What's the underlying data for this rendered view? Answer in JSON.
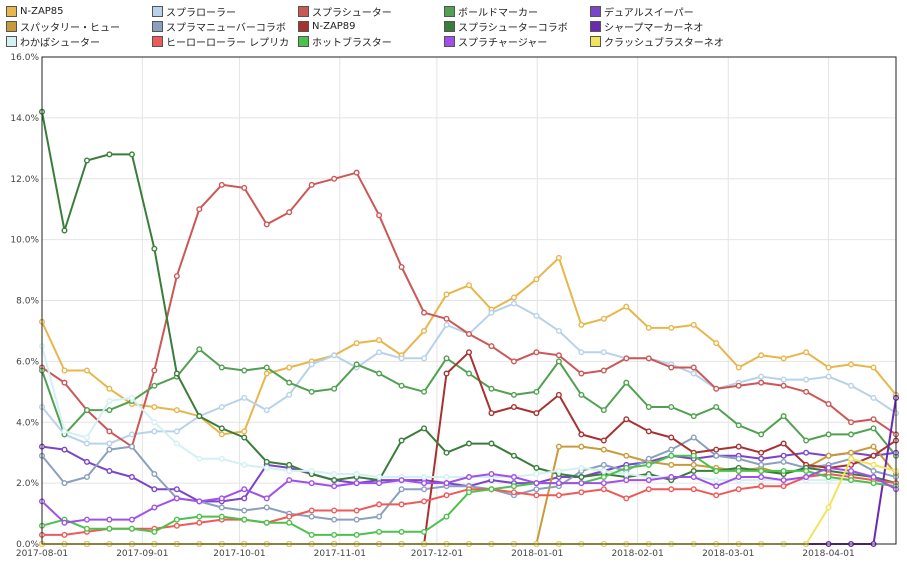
{
  "chart_data": {
    "type": "line",
    "title": "",
    "xlabel": "",
    "ylabel": "",
    "ylim": [
      0,
      16
    ],
    "y_ticks": [
      "0.0%",
      "2.0%",
      "4.0%",
      "6.0%",
      "8.0%",
      "10.0%",
      "12.0%",
      "14.0%",
      "16.0%"
    ],
    "x_ticks": [
      "2017-08-01",
      "2017-09-01",
      "2017-10-01",
      "2017-11-01",
      "2017-12-01",
      "2018-01-01",
      "2018-02-01",
      "2018-03-01",
      "2018-04-01"
    ],
    "grid": true,
    "legend_position": "top",
    "series": [
      {
        "name": "N-ZAP85",
        "color": "#e8b64a",
        "values": [
          7.3,
          5.7,
          5.7,
          5.1,
          4.6,
          4.5,
          4.4,
          4.2,
          3.6,
          3.7,
          5.6,
          5.8,
          6.0,
          6.2,
          6.6,
          6.7,
          6.2,
          7.0,
          8.2,
          8.5,
          7.7,
          8.1,
          8.7,
          9.4,
          7.2,
          7.4,
          7.8,
          7.1,
          7.1,
          7.2,
          6.6,
          5.8,
          6.2,
          6.1,
          6.3,
          5.8,
          5.9,
          5.8,
          4.9
        ]
      },
      {
        "name": "スプラローラー",
        "color": "#b7d2ea",
        "values": [
          4.5,
          3.6,
          3.3,
          3.3,
          3.6,
          3.7,
          3.7,
          4.2,
          4.5,
          4.8,
          4.4,
          4.9,
          5.9,
          6.2,
          5.8,
          6.3,
          6.1,
          6.1,
          7.2,
          6.9,
          7.6,
          7.9,
          7.5,
          7.0,
          6.3,
          6.3,
          6.1,
          6.1,
          5.9,
          5.6,
          5.1,
          5.3,
          5.5,
          5.4,
          5.4,
          5.5,
          5.2,
          4.8,
          4.3
        ]
      },
      {
        "name": "スプラシューター",
        "color": "#cc5757",
        "values": [
          5.8,
          5.3,
          4.4,
          3.7,
          3.2,
          5.7,
          8.8,
          11.0,
          11.8,
          11.7,
          10.5,
          10.9,
          11.8,
          12.0,
          12.2,
          10.8,
          9.1,
          7.6,
          7.4,
          6.9,
          6.5,
          6.0,
          6.3,
          6.2,
          5.6,
          5.7,
          6.1,
          6.1,
          5.8,
          5.8,
          5.1,
          5.2,
          5.3,
          5.2,
          5.0,
          4.6,
          4.0,
          4.1,
          3.6
        ]
      },
      {
        "name": "ボールドマーカー",
        "color": "#52a052",
        "values": [
          5.7,
          3.6,
          4.4,
          4.4,
          4.7,
          5.2,
          5.5,
          6.4,
          5.8,
          5.7,
          5.8,
          5.3,
          5.0,
          5.1,
          5.9,
          5.6,
          5.2,
          5.0,
          6.1,
          5.6,
          5.1,
          4.9,
          5.0,
          6.0,
          4.9,
          4.4,
          5.3,
          4.5,
          4.5,
          4.2,
          4.5,
          3.9,
          3.6,
          4.2,
          3.4,
          3.6,
          3.6,
          3.8,
          2.9
        ]
      },
      {
        "name": "デュアルスイーパー",
        "color": "#7a45c8",
        "values": [
          3.2,
          3.1,
          2.7,
          2.4,
          2.2,
          1.8,
          1.8,
          1.4,
          1.4,
          1.5,
          2.6,
          2.5,
          2.3,
          2.1,
          2.0,
          2.1,
          2.1,
          2.1,
          2.0,
          1.9,
          2.1,
          2.0,
          2.0,
          2.2,
          2.2,
          2.4,
          2.6,
          2.7,
          2.9,
          2.8,
          2.9,
          2.9,
          2.8,
          2.9,
          3.0,
          2.9,
          3.0,
          2.9,
          3.0
        ]
      },
      {
        "name": "スパッタリー・ヒュー",
        "color": "#c99a38",
        "values": [
          0,
          0,
          0,
          0,
          0,
          0,
          0,
          0,
          0,
          0,
          0,
          0,
          0,
          0,
          0,
          0,
          0,
          0,
          0,
          0,
          0,
          0,
          0,
          3.2,
          3.2,
          3.1,
          2.9,
          2.7,
          2.6,
          2.6,
          2.5,
          2.4,
          2.5,
          2.3,
          2.5,
          2.9,
          3.0,
          3.2,
          2.3
        ]
      },
      {
        "name": "スプラマニューバーコラボ",
        "color": "#8aa0be",
        "values": [
          2.9,
          2.0,
          2.2,
          3.1,
          3.2,
          2.3,
          1.5,
          1.4,
          1.2,
          1.1,
          1.2,
          1.0,
          0.9,
          0.8,
          0.8,
          0.9,
          1.8,
          1.8,
          1.9,
          1.9,
          1.8,
          1.6,
          1.8,
          1.9,
          2.4,
          2.6,
          2.4,
          2.8,
          3.1,
          3.5,
          2.9,
          2.8,
          2.6,
          2.7,
          2.5,
          2.6,
          2.8,
          2.4,
          2.2
        ]
      },
      {
        "name": "N-ZAP89",
        "color": "#a83232",
        "values": [
          0,
          0,
          0,
          0,
          0,
          0,
          0,
          0,
          0,
          0,
          0,
          0,
          0,
          0,
          0,
          0,
          0,
          0,
          5.6,
          6.3,
          4.3,
          4.5,
          4.3,
          4.9,
          3.6,
          3.4,
          4.1,
          3.7,
          3.5,
          3.0,
          3.1,
          3.2,
          3.0,
          3.3,
          2.6,
          2.5,
          2.6,
          2.9,
          3.4
        ]
      },
      {
        "name": "スプラシューターコラボ",
        "color": "#3a7d3a",
        "values": [
          14.2,
          10.3,
          12.6,
          12.8,
          12.8,
          9.7,
          5.6,
          4.2,
          3.8,
          3.5,
          2.7,
          2.6,
          2.3,
          2.1,
          2.2,
          2.1,
          3.4,
          3.8,
          3.0,
          3.3,
          3.3,
          2.9,
          2.5,
          2.3,
          2.2,
          2.3,
          2.2,
          2.3,
          2.1,
          2.4,
          2.4,
          2.5,
          2.4,
          2.3,
          2.5,
          2.4,
          2.3,
          2.2,
          2.0
        ]
      },
      {
        "name": "シャープマーカーネオ",
        "color": "#6a2ab0",
        "values": [
          0,
          0,
          0,
          0,
          0,
          0,
          0,
          0,
          0,
          0,
          0,
          0,
          0,
          0,
          0,
          0,
          0,
          0,
          0,
          0,
          0,
          0,
          0,
          0,
          0,
          0,
          0,
          0,
          0,
          0,
          0,
          0,
          0,
          0,
          0,
          0,
          0,
          0,
          4.8
        ]
      },
      {
        "name": "わかばシューター",
        "color": "#d3f0f3",
        "values": [
          6.5,
          3.7,
          3.5,
          4.7,
          4.8,
          4.0,
          3.3,
          2.8,
          2.8,
          2.6,
          2.5,
          2.4,
          2.4,
          2.3,
          2.3,
          2.2,
          2.2,
          2.2,
          2.2,
          2.2,
          2.2,
          2.2,
          2.3,
          2.4,
          2.5,
          2.4,
          2.3,
          2.2,
          2.2,
          2.2,
          2.1,
          2.1,
          2.1,
          2.1,
          2.1,
          2.1,
          2.1,
          2.0,
          2.0
        ]
      },
      {
        "name": "ヒーローローラー レプリカ",
        "color": "#ee5a5a",
        "values": [
          0.3,
          0.3,
          0.4,
          0.5,
          0.5,
          0.5,
          0.6,
          0.7,
          0.8,
          0.8,
          0.7,
          0.9,
          1.1,
          1.1,
          1.1,
          1.3,
          1.3,
          1.4,
          1.6,
          1.8,
          1.8,
          1.7,
          1.6,
          1.6,
          1.7,
          1.8,
          1.5,
          1.8,
          1.8,
          1.8,
          1.6,
          1.8,
          1.9,
          1.9,
          2.2,
          2.3,
          2.2,
          2.1,
          2.0
        ]
      },
      {
        "name": "ホットブラスター",
        "color": "#4cc24c",
        "values": [
          0.6,
          0.8,
          0.5,
          0.5,
          0.5,
          0.4,
          0.8,
          0.9,
          0.9,
          0.8,
          0.7,
          0.7,
          0.3,
          0.3,
          0.3,
          0.4,
          0.4,
          0.4,
          0.9,
          1.7,
          1.8,
          1.9,
          2.0,
          2.0,
          2.0,
          2.2,
          2.5,
          2.6,
          2.9,
          2.9,
          2.4,
          2.4,
          2.4,
          2.4,
          2.4,
          2.2,
          2.1,
          2.0,
          1.9
        ]
      },
      {
        "name": "スプラチャージャー",
        "color": "#a050e8",
        "values": [
          1.4,
          0.7,
          0.8,
          0.8,
          0.8,
          1.2,
          1.5,
          1.4,
          1.5,
          1.8,
          1.5,
          2.1,
          2.0,
          1.9,
          2.0,
          2.0,
          2.1,
          2.0,
          2.0,
          2.2,
          2.3,
          2.2,
          2.0,
          2.0,
          2.0,
          2.0,
          2.1,
          2.1,
          2.2,
          2.2,
          1.9,
          2.2,
          2.2,
          2.1,
          2.2,
          2.5,
          2.4,
          2.2,
          1.8
        ]
      },
      {
        "name": "クラッシュブラスターネオ",
        "color": "#f2e35a",
        "values": [
          0,
          0,
          0,
          0,
          0,
          0,
          0,
          0,
          0,
          0,
          0,
          0,
          0,
          0,
          0,
          0,
          0,
          0,
          0,
          0,
          0,
          0,
          0,
          0,
          0,
          0,
          0,
          0,
          0,
          0,
          0,
          0,
          0,
          0,
          0,
          1.2,
          2.8,
          2.6,
          2.4
        ]
      }
    ]
  }
}
